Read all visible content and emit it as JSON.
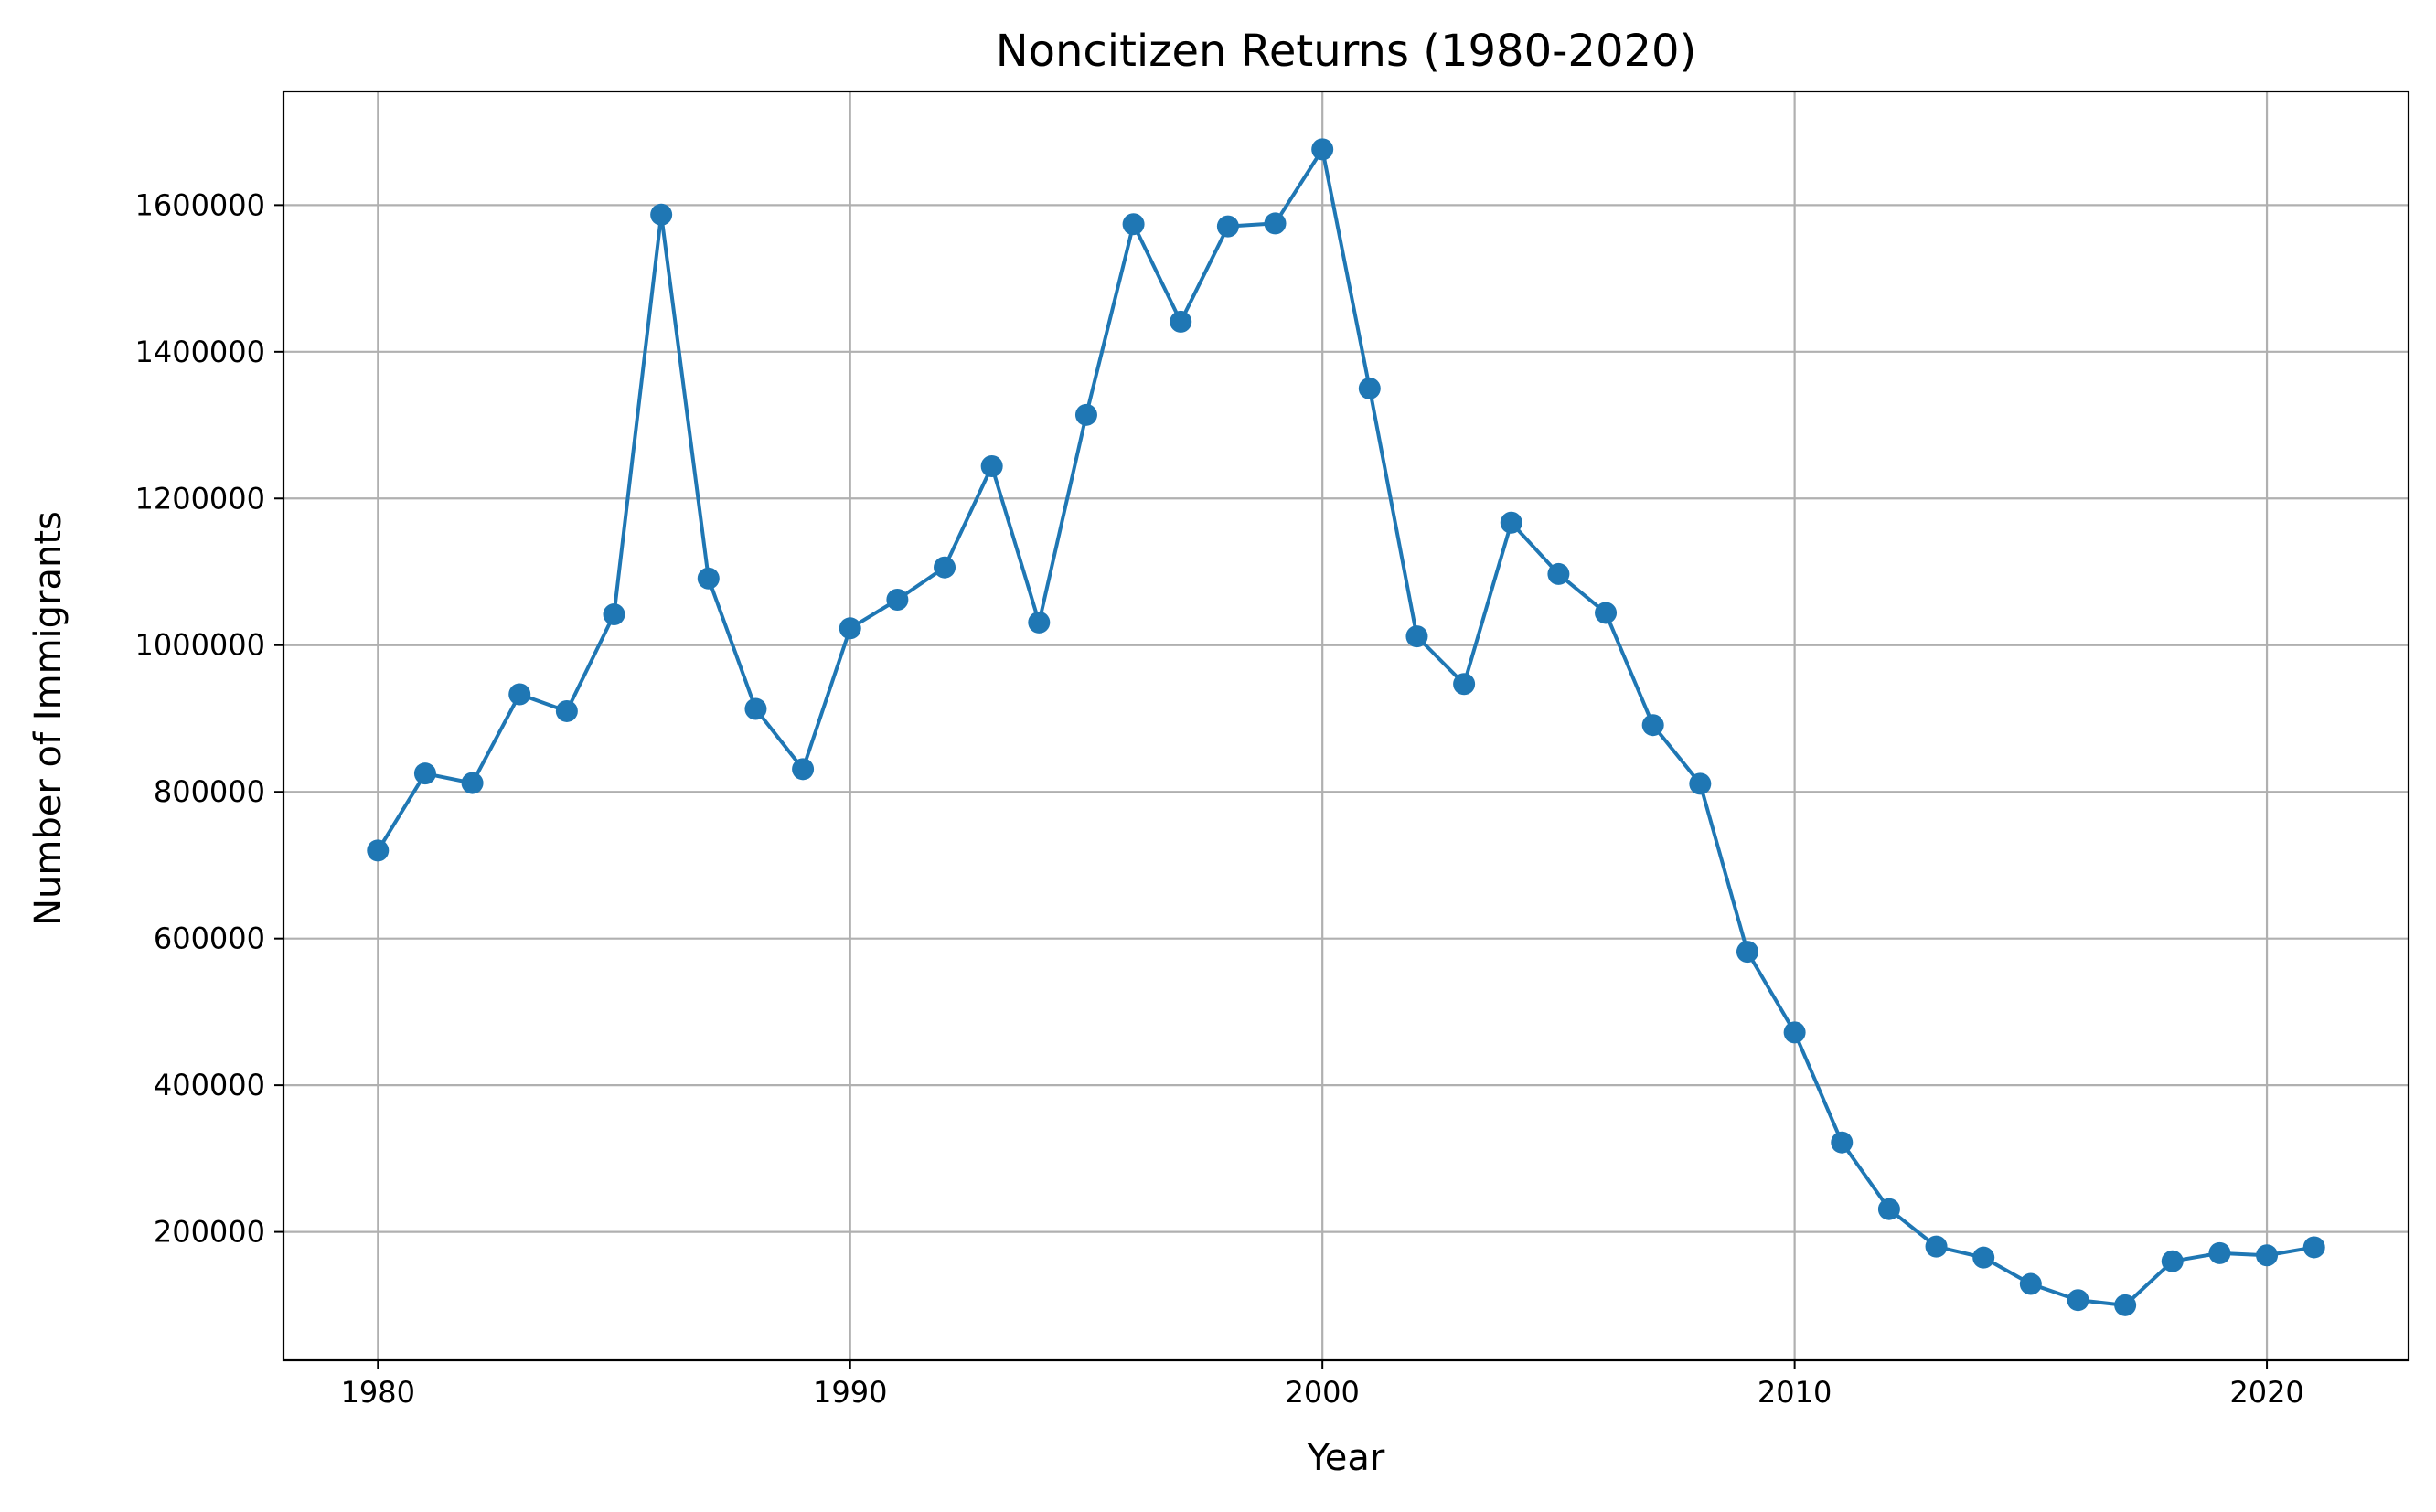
{
  "chart_data": {
    "type": "line",
    "title": "Noncitizen Returns (1980-2020)",
    "xlabel": "Year",
    "ylabel": "Number of Immigrants",
    "xlim": [
      1978,
      2023
    ],
    "ylim": [
      25000,
      1755000
    ],
    "xticks": [
      1980,
      1990,
      2000,
      2010,
      2020
    ],
    "yticks": [
      200000,
      400000,
      600000,
      800000,
      1000000,
      1200000,
      1400000,
      1600000
    ],
    "grid": true,
    "legend": "none",
    "color": "#1f77b4",
    "marker": "circle",
    "series": [
      {
        "x": [
          1980,
          1981,
          1982,
          1983,
          1984,
          1985,
          1986,
          1987,
          1988,
          1989,
          1990,
          1991,
          1992,
          1993,
          1994,
          1995,
          1996,
          1997,
          1998,
          1999,
          2000,
          2001,
          2002,
          2003,
          2004,
          2005,
          2006,
          2007,
          2008,
          2009,
          2010,
          2011,
          2012,
          2013,
          2014,
          2015,
          2016,
          2017,
          2018,
          2019,
          2020,
          2021
        ],
        "values": [
          720000,
          825000,
          812000,
          933000,
          910000,
          1042000,
          1587000,
          1091000,
          913000,
          831000,
          1023000,
          1062000,
          1106000,
          1244000,
          1031000,
          1314000,
          1574000,
          1441000,
          1571000,
          1575000,
          1676000,
          1350000,
          1012000,
          947000,
          1167000,
          1097000,
          1044000,
          891000,
          811000,
          582000,
          472000,
          322000,
          231000,
          180000,
          165000,
          129000,
          107000,
          100000,
          160000,
          171000,
          168000,
          179000
        ]
      }
    ]
  }
}
